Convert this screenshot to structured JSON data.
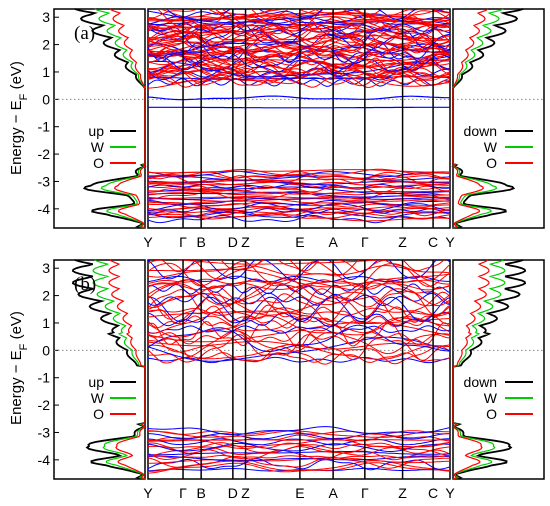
{
  "figure": {
    "ylabel_main": "Energy − E",
    "ylabel_sub": "F",
    "ylabel_unit": " (eV)"
  },
  "chart_data": [
    {
      "type": "line",
      "panel": "(a)",
      "ylim": [
        -4.7,
        3.3
      ],
      "yticks": [
        -4,
        -3,
        -2,
        -1,
        0,
        1,
        2,
        3
      ],
      "fermi_level": 0,
      "kpath_labels": [
        "Y",
        "Γ",
        "B",
        "D",
        "Z",
        "E",
        "A",
        "Γ",
        "Z",
        "C",
        "Y"
      ],
      "kpath_positions": [
        0,
        0.116,
        0.176,
        0.281,
        0.323,
        0.503,
        0.613,
        0.718,
        0.843,
        0.944,
        1.0
      ],
      "legend_left": [
        "up",
        "W",
        "O"
      ],
      "legend_right": [
        "down",
        "W",
        "O"
      ],
      "series_colors": {
        "up": "#ff0000",
        "down": "#0000ff",
        "total": "#000000",
        "W": "#00cc00",
        "O": "#ff0000"
      },
      "band_groups": {
        "valence_range": [
          -4.4,
          -2.6
        ],
        "conduction_range": [
          0.6,
          3.3
        ],
        "midgap_band_energy": -0.3,
        "midgap_band_energy_2": 0.05
      }
    },
    {
      "type": "line",
      "panel": "(b)",
      "ylim": [
        -4.7,
        3.3
      ],
      "yticks": [
        -4,
        -3,
        -2,
        -1,
        0,
        1,
        2,
        3
      ],
      "fermi_level": 0,
      "kpath_labels": [
        "Y",
        "Γ",
        "B",
        "D",
        "Z",
        "E",
        "A",
        "Γ",
        "Z",
        "C",
        "Y"
      ],
      "kpath_positions": [
        0,
        0.116,
        0.176,
        0.281,
        0.323,
        0.503,
        0.613,
        0.718,
        0.843,
        0.944,
        1.0
      ],
      "legend_left": [
        "up",
        "W",
        "O"
      ],
      "legend_right": [
        "down",
        "W",
        "O"
      ],
      "series_colors": {
        "up": "#ff0000",
        "down": "#0000ff",
        "total": "#000000",
        "W": "#00cc00",
        "O": "#ff0000"
      },
      "band_groups": {
        "valence_range": [
          -4.4,
          -2.9
        ],
        "conduction_range": [
          -0.4,
          3.3
        ]
      }
    }
  ]
}
